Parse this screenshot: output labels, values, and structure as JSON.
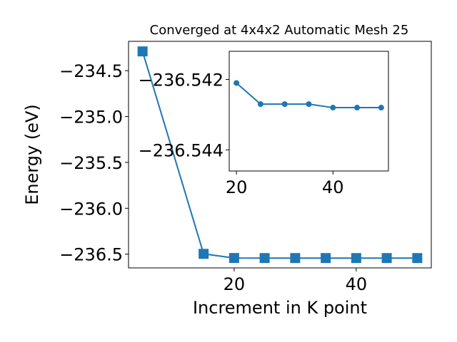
{
  "chart_data": [
    {
      "type": "line",
      "title": "Converged at 4x4x2 Automatic Mesh 25",
      "xlabel": "Increment in K point",
      "ylabel": "Energy (eV)",
      "x": [
        5,
        15,
        20,
        25,
        30,
        35,
        40,
        45,
        50
      ],
      "series": [
        {
          "values": [
            -234.29,
            -236.497,
            -236.5421,
            -236.5427,
            -236.5427,
            -236.5427,
            -236.5428,
            -236.5428,
            -236.5428
          ]
        }
      ],
      "xlim": [
        2.7,
        52.3
      ],
      "ylim": [
        -236.65,
        -234.18
      ],
      "xticks": [
        20,
        40
      ],
      "yticks": [
        -234.5,
        -235.0,
        -235.5,
        -236.0,
        -236.5
      ],
      "ytick_labels": [
        "−234.5",
        "−235.0",
        "−235.5",
        "−236.0",
        "−236.5"
      ],
      "marker": "square",
      "color": "#1f77b4",
      "grid": false
    },
    {
      "type": "line",
      "title": "",
      "xlabel": "",
      "ylabel": "",
      "x": [
        20,
        25,
        30,
        35,
        40,
        45,
        50
      ],
      "series": [
        {
          "values": [
            -236.5421,
            -236.5427,
            -236.5427,
            -236.5427,
            -236.5428,
            -236.5428,
            -236.5428
          ]
        }
      ],
      "xlim": [
        18.5,
        51.5
      ],
      "ylim": [
        -236.5446,
        -236.5412
      ],
      "xticks": [
        20,
        40
      ],
      "yticks": [
        -236.544,
        -236.542
      ],
      "ytick_labels": [
        "−236.544",
        "−236.542"
      ],
      "marker": "circle",
      "color": "#1f77b4",
      "grid": false
    }
  ]
}
